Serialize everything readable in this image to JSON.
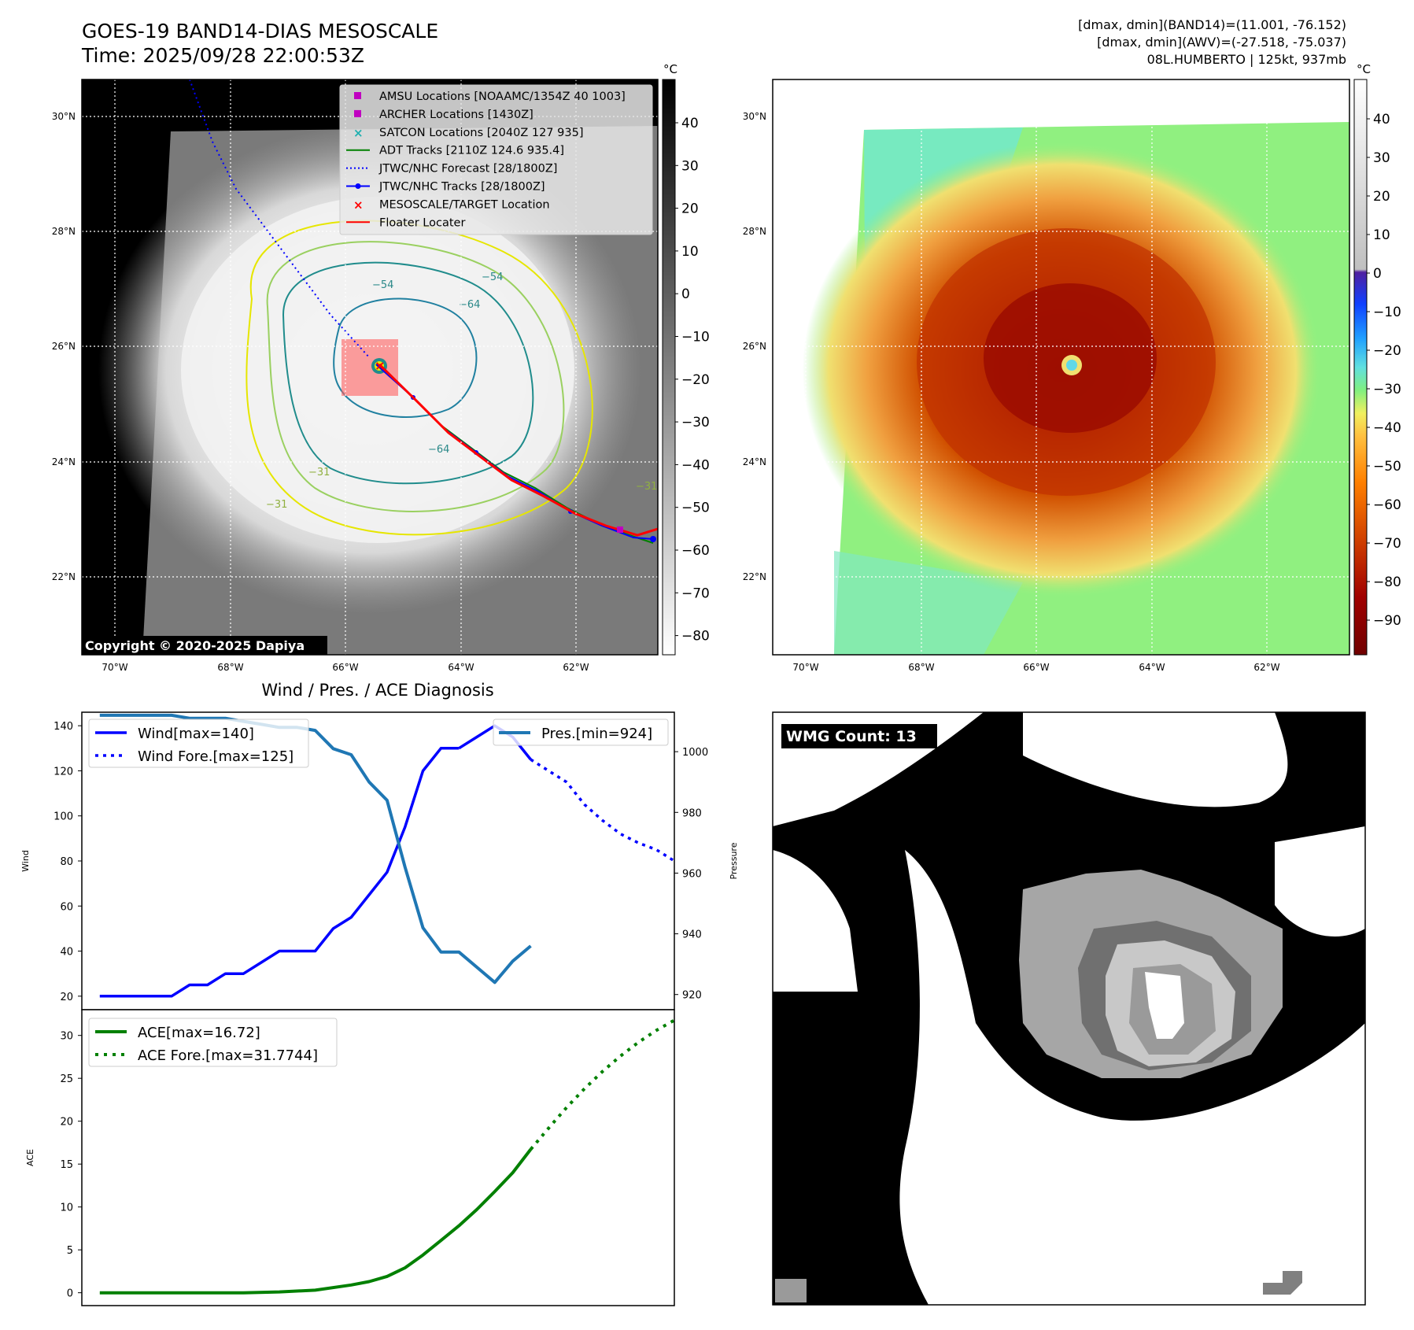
{
  "header": {
    "title_line1": "GOES-19 BAND14-DIAS MESOSCALE",
    "title_line2": "Time: 2025/09/28 22:00:53Z",
    "info_line1": "[dmax, dmin](BAND14)=(11.001, -76.152)",
    "info_line2": "[dmax, dmin](AWV)=(-27.518, -75.037)",
    "info_line3": "08L.HUMBERTO | 125kt, 937mb"
  },
  "map_left": {
    "copyright": "Copyright © 2020-2025 Dapiya",
    "colorbar_unit": "°C",
    "colorbar_ticks": [
      "40",
      "30",
      "20",
      "10",
      "0",
      "−10",
      "−20",
      "−30",
      "−40",
      "−50",
      "−60",
      "−70",
      "−80"
    ],
    "lon_labels": [
      "70°W",
      "68°W",
      "66°W",
      "64°W",
      "62°W"
    ],
    "lat_labels": [
      "30°N",
      "28°N",
      "26°N",
      "24°N",
      "22°N"
    ],
    "contour_labels": [
      "−54",
      "−64",
      "−64",
      "−54",
      "−31",
      "−31",
      "−31"
    ],
    "legend": [
      {
        "label": "AMSU Locations [NOAAMC/1354Z 40 1003]",
        "color": "#c000c0",
        "marker": "square"
      },
      {
        "label": "ARCHER Locations [1430Z]",
        "color": "#c000c0",
        "marker": "square"
      },
      {
        "label": "SATCON Locations [2040Z 127 935]",
        "color": "#20b0b0",
        "marker": "x"
      },
      {
        "label": "ADT Tracks [2110Z 124.6 935.4]",
        "color": "#008000",
        "marker": "line"
      },
      {
        "label": "JTWC/NHC Forecast [28/1800Z]",
        "color": "#0000ff",
        "marker": "dotted"
      },
      {
        "label": "JTWC/NHC Tracks [28/1800Z]",
        "color": "#0000ff",
        "marker": "line-dot"
      },
      {
        "label": "MESOSCALE/TARGET Location",
        "color": "#ff0000",
        "marker": "x"
      },
      {
        "label": "Floater Locater",
        "color": "#ff0000",
        "marker": "line"
      }
    ]
  },
  "map_right": {
    "colorbar_unit": "°C",
    "colorbar_ticks": [
      "40",
      "30",
      "20",
      "10",
      "0",
      "−10",
      "−20",
      "−30",
      "−40",
      "−50",
      "−60",
      "−70",
      "−80",
      "−90"
    ],
    "lon_labels": [
      "70°W",
      "68°W",
      "66°W",
      "64°W",
      "62°W"
    ],
    "lat_labels": [
      "30°N",
      "28°N",
      "26°N",
      "24°N",
      "22°N"
    ]
  },
  "wmg": {
    "label": "WMG Count: 13"
  },
  "colors": {
    "wind": "#0000ff",
    "pressure": "#1f77b4",
    "ace": "#008000",
    "floater": "#ff0000"
  },
  "chart_data": [
    {
      "type": "line",
      "title": "Wind / Pres. / ACE Diagnosis",
      "ylabel": "Wind",
      "ylim": [
        14,
        146
      ],
      "yticks": [
        20,
        40,
        60,
        80,
        100,
        120,
        140
      ],
      "y2label": "Pressure",
      "y2lim": [
        915,
        1013
      ],
      "y2ticks": [
        920,
        940,
        960,
        980,
        1000
      ],
      "xlim": [
        -1,
        32
      ],
      "series": [
        {
          "name": "Wind[max=140]",
          "axis": "left",
          "style": "solid",
          "x": [
            0,
            1,
            2,
            3,
            4,
            5,
            6,
            7,
            8,
            9,
            10,
            11,
            12,
            13,
            14,
            15,
            16,
            17,
            18,
            19,
            20
          ],
          "values": [
            20,
            20,
            20,
            20,
            20,
            25,
            25,
            30,
            30,
            35,
            40,
            40,
            40,
            50,
            55,
            65,
            75,
            95,
            120,
            130,
            130
          ]
        },
        {
          "name": "Wind[max=140]",
          "axis": "left",
          "style": "solid",
          "x": [
            20,
            21,
            22,
            23,
            24
          ],
          "values": [
            130,
            135,
            140,
            135,
            125
          ]
        },
        {
          "name": "Wind Fore.[max=125]",
          "axis": "left",
          "style": "dotted",
          "x": [
            24,
            25,
            26,
            27,
            28,
            29,
            30,
            31,
            32
          ],
          "values": [
            125,
            120,
            115,
            105,
            98,
            92,
            88,
            85,
            80
          ]
        },
        {
          "name": "Pres.[min=924]",
          "axis": "right",
          "style": "solid",
          "x": [
            0,
            1,
            2,
            3,
            4,
            5,
            6,
            7,
            8,
            9,
            10,
            11,
            12,
            13,
            14,
            15,
            16,
            17,
            18,
            19,
            20,
            21,
            22,
            23,
            24
          ],
          "values": [
            1012,
            1012,
            1012,
            1012,
            1012,
            1011,
            1011,
            1011,
            1010,
            1009,
            1008,
            1008,
            1007,
            1001,
            999,
            990,
            984,
            962,
            942,
            934,
            934,
            929,
            924,
            931,
            936
          ]
        }
      ]
    },
    {
      "type": "line",
      "ylabel": "ACE",
      "ylim": [
        -1.5,
        33
      ],
      "yticks": [
        0,
        5,
        10,
        15,
        20,
        25,
        30
      ],
      "xlim": [
        -1,
        32
      ],
      "series": [
        {
          "name": "ACE[max=16.72]",
          "style": "solid",
          "x": [
            0,
            2,
            4,
            6,
            8,
            10,
            12,
            14,
            15,
            16,
            17,
            18,
            19,
            20,
            21,
            22,
            23,
            24
          ],
          "values": [
            0,
            0,
            0,
            0,
            0,
            0.1,
            0.3,
            0.9,
            1.3,
            1.9,
            2.9,
            4.4,
            6.1,
            7.8,
            9.7,
            11.8,
            14.0,
            16.72
          ]
        },
        {
          "name": "ACE Fore.[max=31.7744]",
          "style": "dotted",
          "x": [
            24,
            25,
            26,
            27,
            28,
            29,
            30,
            31,
            32
          ],
          "values": [
            16.72,
            19.2,
            21.6,
            23.8,
            25.8,
            27.6,
            29.2,
            30.6,
            31.7744
          ]
        }
      ]
    }
  ]
}
